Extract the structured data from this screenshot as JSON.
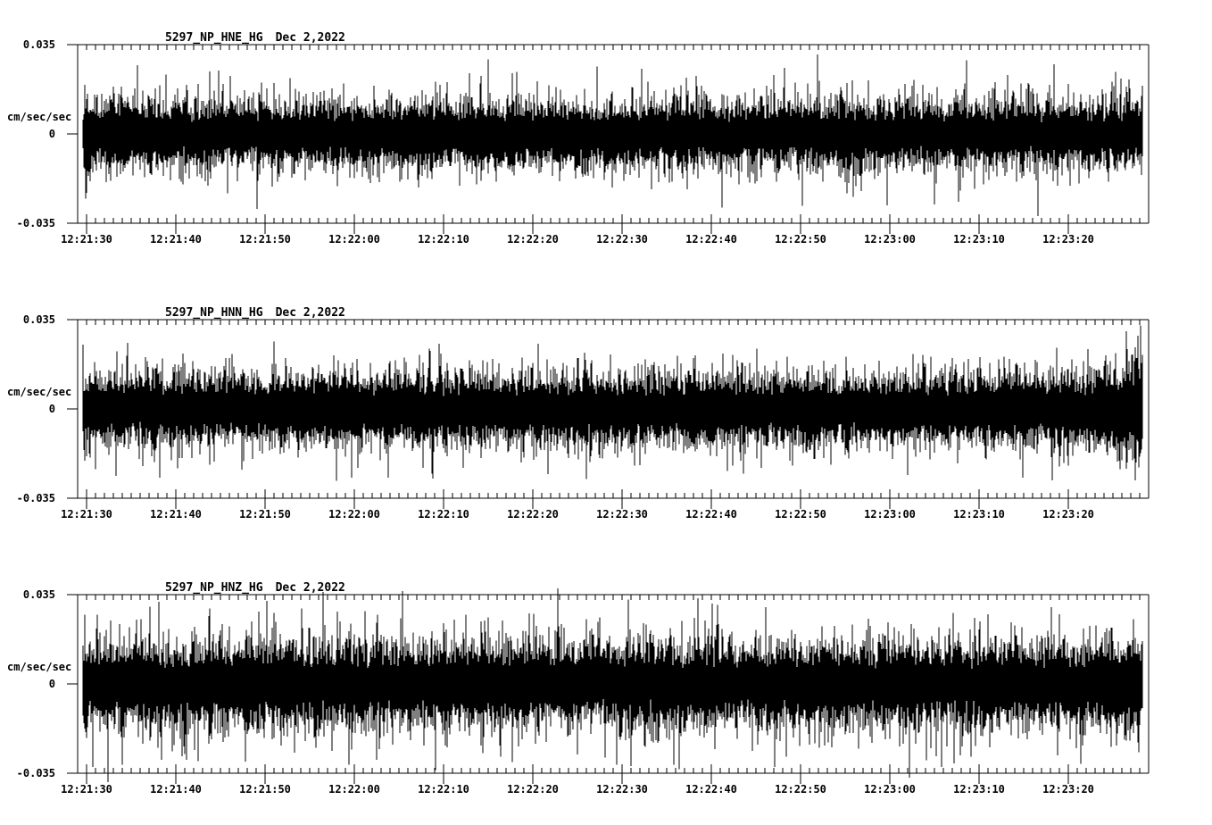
{
  "page": {
    "background": "#ffffff",
    "foreground": "#000000",
    "description": "Three-channel strong-motion seismogram display"
  },
  "chart_data": [
    {
      "type": "line",
      "title": "5297_NP_HNE_HG",
      "date_label": "Dec 2,2022",
      "ylabel": "cm/sec/sec",
      "ylim": [
        -0.035,
        0.035
      ],
      "yticks": [
        0.035,
        0,
        -0.035
      ],
      "ytick_labels": {
        "top": "0.035",
        "mid": "0",
        "bottom": "-0.035"
      },
      "xtick_labels": [
        "12:21:30",
        "12:21:40",
        "12:21:50",
        "12:22:00",
        "12:22:10",
        "12:22:20",
        "12:22:30",
        "12:22:40",
        "12:22:50",
        "12:23:00",
        "12:23:10",
        "12:23:20"
      ],
      "x_major_interval_sec": 10,
      "x_minor_interval_sec": 1,
      "x_span_sec": 120,
      "grid": false,
      "legend": "none",
      "waveform": {
        "style": "minmax-envelope",
        "noise_band": 0.0082,
        "typical_peak": 0.017,
        "max_peak": 0.0295,
        "spike_prob": 0.05,
        "clip_limit": 0.0335,
        "end_crescendo": false,
        "seed": 7
      }
    },
    {
      "type": "line",
      "title": "5297_NP_HNN_HG",
      "date_label": "Dec 2,2022",
      "ylabel": "cm/sec/sec",
      "ylim": [
        -0.035,
        0.035
      ],
      "yticks": [
        0.035,
        0,
        -0.035
      ],
      "ytick_labels": {
        "top": "0.035",
        "mid": "0",
        "bottom": "-0.035"
      },
      "xtick_labels": [
        "12:21:30",
        "12:21:40",
        "12:21:50",
        "12:22:00",
        "12:22:10",
        "12:22:20",
        "12:22:30",
        "12:22:40",
        "12:22:50",
        "12:23:00",
        "12:23:10",
        "12:23:20"
      ],
      "x_major_interval_sec": 10,
      "x_minor_interval_sec": 1,
      "x_span_sec": 120,
      "grid": false,
      "legend": "none",
      "waveform": {
        "style": "minmax-envelope",
        "noise_band": 0.009,
        "typical_peak": 0.0165,
        "max_peak": 0.028,
        "spike_prob": 0.05,
        "clip_limit": 0.0335,
        "end_crescendo": true,
        "seed": 13
      }
    },
    {
      "type": "line",
      "title": "5297_NP_HNZ_HG",
      "date_label": "Dec 2,2022",
      "ylabel": "cm/sec/sec",
      "ylim": [
        -0.035,
        0.035
      ],
      "yticks": [
        0.035,
        0,
        -0.035
      ],
      "ytick_labels": {
        "top": "0.035",
        "mid": "0",
        "bottom": "-0.035"
      },
      "xtick_labels": [
        "12:21:30",
        "12:21:40",
        "12:21:50",
        "12:22:00",
        "12:22:10",
        "12:22:20",
        "12:22:30",
        "12:22:40",
        "12:22:50",
        "12:23:00",
        "12:23:10",
        "12:23:20"
      ],
      "x_major_interval_sec": 10,
      "x_minor_interval_sec": 1,
      "x_span_sec": 120,
      "grid": false,
      "legend": "none",
      "waveform": {
        "style": "minmax-envelope",
        "noise_band": 0.0104,
        "typical_peak": 0.021,
        "max_peak": 0.034,
        "spike_prob": 0.085,
        "clip_limit": 0.0402,
        "end_crescendo": false,
        "seed": 23
      }
    }
  ]
}
